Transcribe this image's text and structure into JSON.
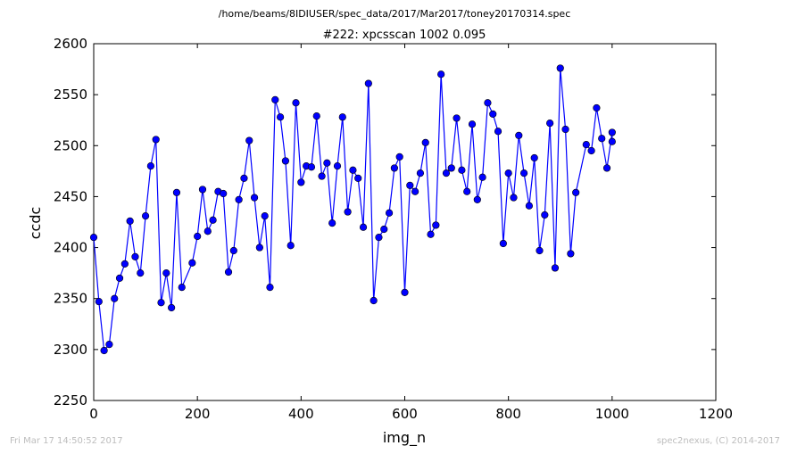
{
  "chart_data": {
    "type": "line",
    "suptitle": "/home/beams/8IDIUSER/spec_data/2017/Mar2017/toney20170314.spec",
    "title": "#222: xpcsscan 1002 0.095",
    "xlabel": "img_n",
    "ylabel": "ccdc",
    "xlim": [
      0,
      1200
    ],
    "ylim": [
      2250,
      2600
    ],
    "xticks": [
      0,
      200,
      400,
      600,
      800,
      1000,
      1200
    ],
    "yticks": [
      2250,
      2300,
      2350,
      2400,
      2450,
      2500,
      2550,
      2600
    ],
    "grid": false,
    "line_color": "#0000ff",
    "marker_color": "#0000ff",
    "series": [
      {
        "x": [
          0,
          10,
          20,
          30,
          40,
          50,
          60,
          70,
          80,
          90,
          100,
          110,
          120,
          130,
          140,
          150,
          160,
          170,
          190,
          200,
          210,
          220,
          230,
          240,
          250,
          260,
          270,
          280,
          290,
          300,
          310,
          320,
          330,
          340,
          350,
          360,
          370,
          380,
          390,
          400,
          410,
          420,
          430,
          440,
          450,
          460,
          470,
          480,
          490,
          500,
          510,
          520,
          530,
          540,
          550,
          560,
          570,
          580,
          590,
          600,
          610,
          620,
          630,
          640,
          650,
          660,
          670,
          680,
          690,
          700,
          710,
          720,
          730,
          740,
          750,
          760,
          770,
          780,
          790,
          800,
          810,
          820,
          830,
          840,
          850,
          860,
          870,
          880,
          890,
          900,
          910,
          920,
          930,
          950,
          960,
          970,
          980,
          990,
          1000,
          1000
        ],
        "y": [
          2410,
          2347,
          2299,
          2305,
          2350,
          2370,
          2384,
          2426,
          2391,
          2375,
          2431,
          2480,
          2506,
          2346,
          2375,
          2341,
          2454,
          2361,
          2385,
          2411,
          2457,
          2416,
          2427,
          2455,
          2453,
          2376,
          2397,
          2447,
          2468,
          2505,
          2449,
          2400,
          2431,
          2361,
          2545,
          2528,
          2485,
          2402,
          2542,
          2464,
          2480,
          2479,
          2529,
          2470,
          2483,
          2424,
          2480,
          2528,
          2435,
          2476,
          2468,
          2420,
          2561,
          2348,
          2410,
          2418,
          2434,
          2478,
          2489,
          2356,
          2461,
          2455,
          2473,
          2503,
          2413,
          2422,
          2570,
          2473,
          2478,
          2527,
          2476,
          2455,
          2521,
          2447,
          2469,
          2542,
          2531,
          2514,
          2404,
          2473,
          2449,
          2510,
          2473,
          2441,
          2488,
          2397,
          2432,
          2522,
          2380,
          2576,
          2516,
          2394,
          2454,
          2501,
          2495,
          2537,
          2507,
          2478,
          2513,
          2504
        ]
      }
    ]
  },
  "footer": {
    "timestamp": "Fri Mar 17 14:50:52 2017",
    "credit": "spec2nexus, (C) 2014-2017"
  }
}
